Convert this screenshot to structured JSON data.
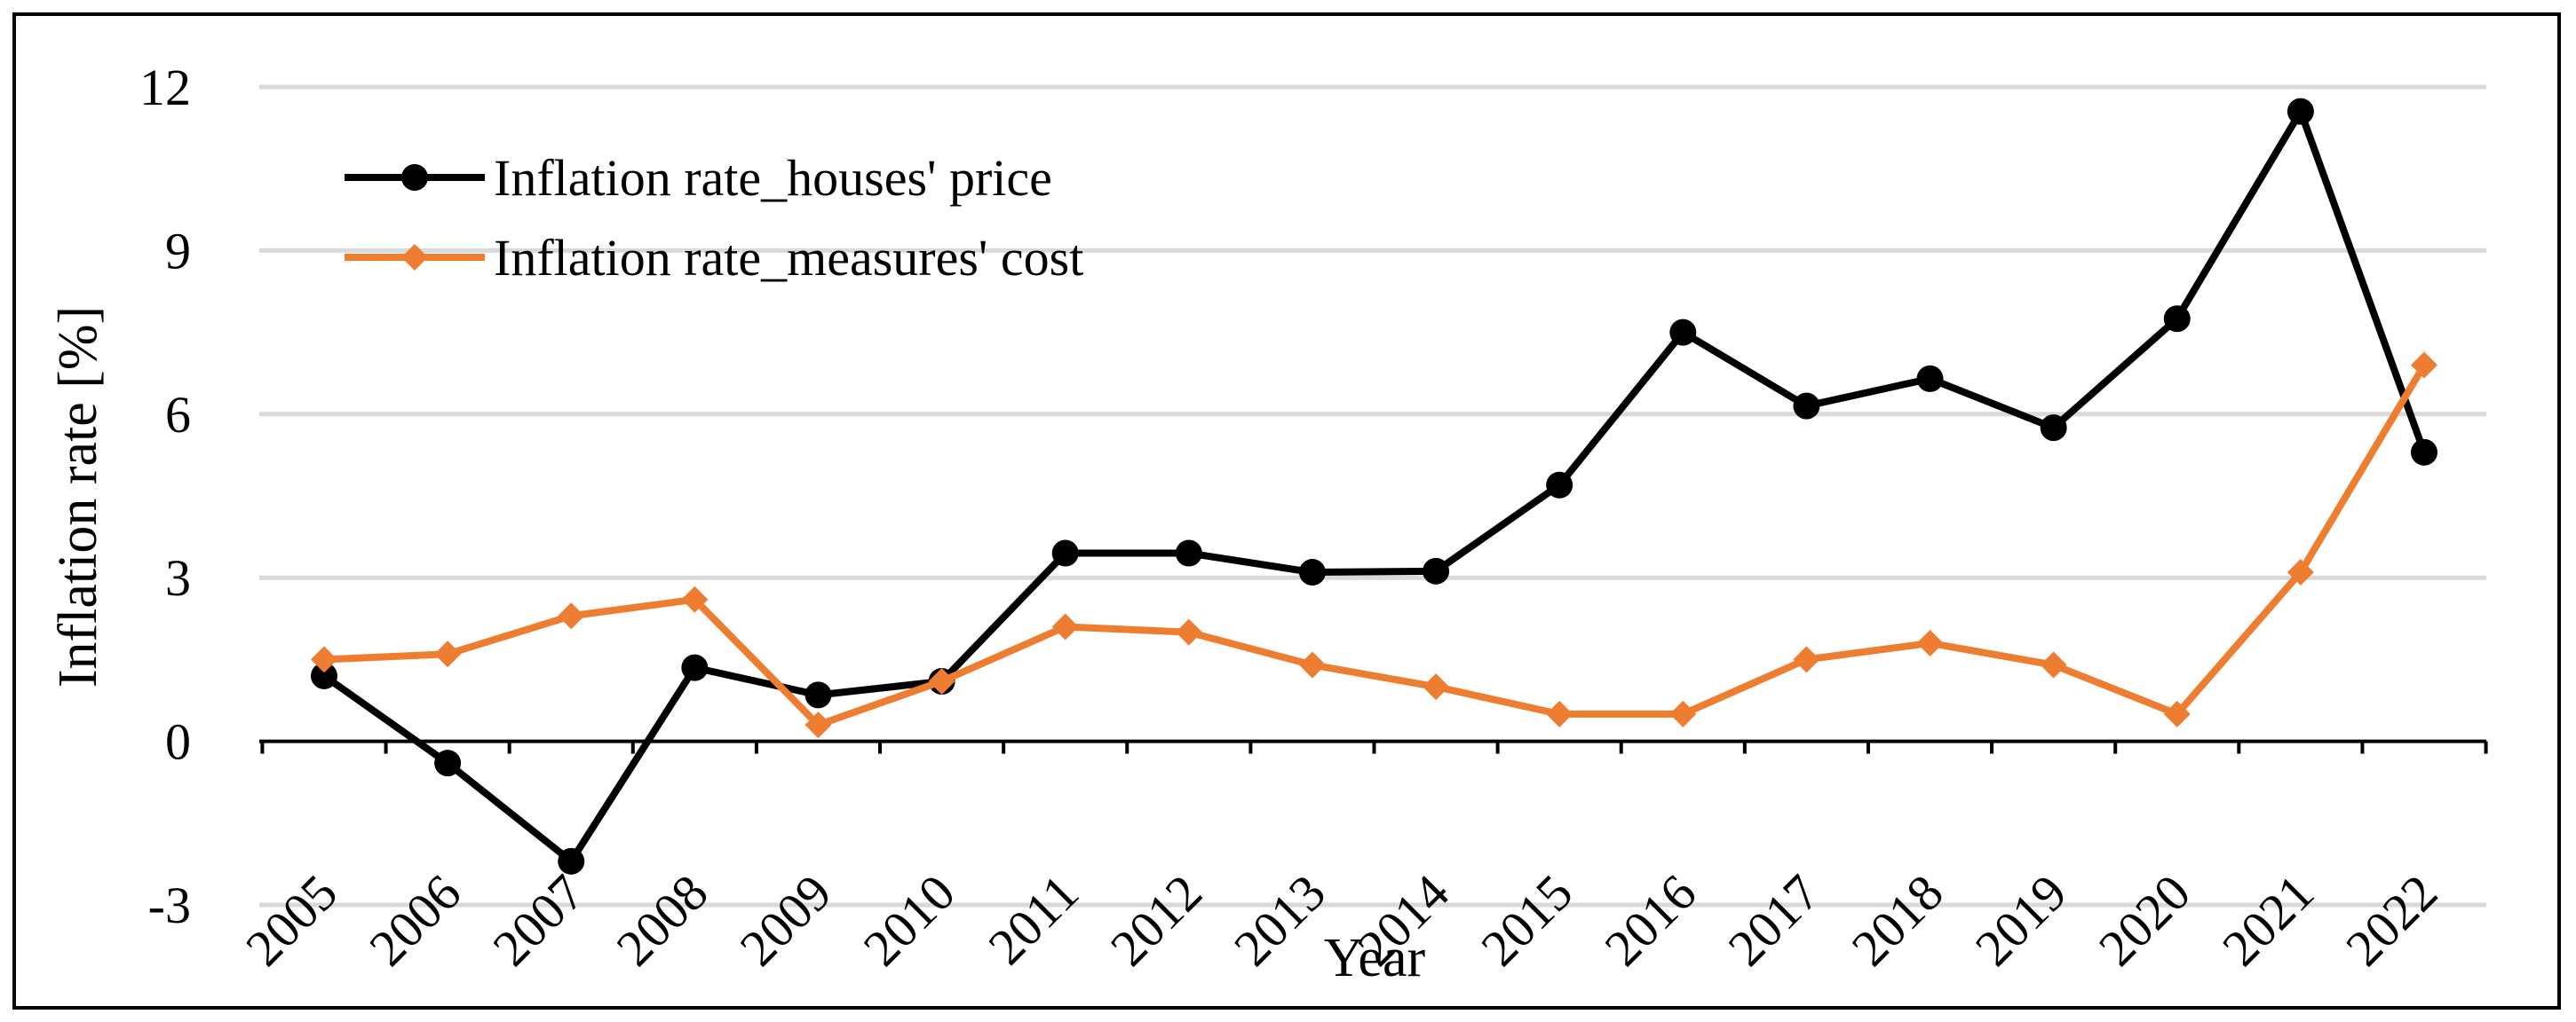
{
  "chart_data": {
    "type": "line",
    "title": "",
    "xlabel": "Year",
    "ylabel": "Inflation rate [%]",
    "ylim": [
      -3,
      12
    ],
    "yticks": [
      -3,
      0,
      3,
      6,
      9,
      12
    ],
    "ytick_labels": [
      "-3",
      "0",
      "3",
      "6",
      "9",
      "12"
    ],
    "grid": true,
    "legend_position": "top-left",
    "categories": [
      "2005",
      "2006",
      "2007",
      "2008",
      "2009",
      "2010",
      "2011",
      "2012",
      "2013",
      "2014",
      "2015",
      "2016",
      "2017",
      "2018",
      "2019",
      "2020",
      "2021",
      "2022"
    ],
    "series": [
      {
        "name": "Inflation rate_houses' price",
        "color": "#000000",
        "marker": "circle",
        "values": [
          1.2,
          -0.4,
          -2.2,
          1.35,
          0.85,
          1.1,
          3.45,
          3.45,
          3.1,
          3.12,
          4.7,
          7.5,
          6.15,
          6.65,
          5.75,
          7.75,
          11.55,
          5.3
        ]
      },
      {
        "name": "Inflation rate_measures' cost",
        "color": "#ED7D31",
        "marker": "diamond",
        "values": [
          1.5,
          1.6,
          2.3,
          2.6,
          0.3,
          1.1,
          2.1,
          2.0,
          1.4,
          1.0,
          0.5,
          0.5,
          1.5,
          1.8,
          1.4,
          0.5,
          3.1,
          6.9
        ]
      }
    ]
  }
}
